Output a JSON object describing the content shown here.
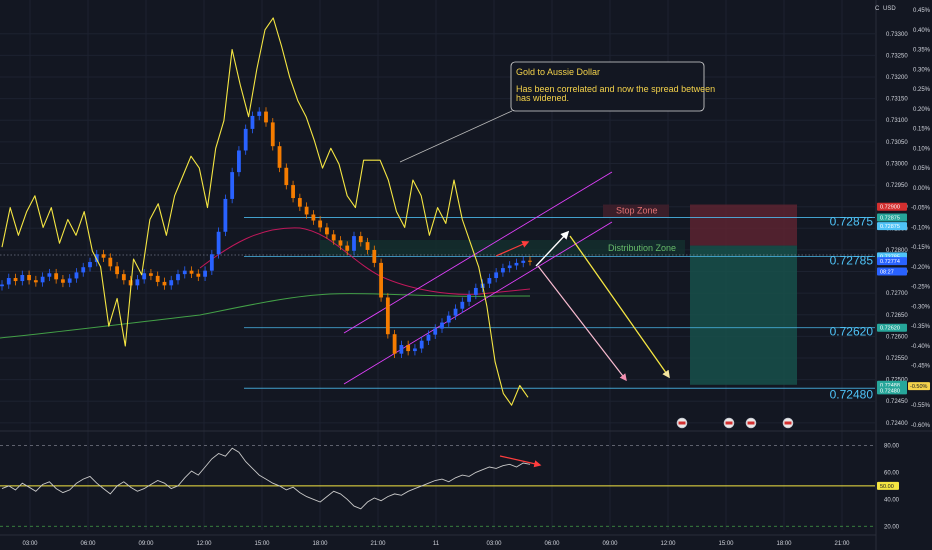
{
  "header": {
    "currency": "USD",
    "corner": "C"
  },
  "colors": {
    "bg": "#131722",
    "up": "#2962ff",
    "down": "#f57c00",
    "overlay": "#f5e642",
    "level": "#4fc3f7",
    "channel": "#e040fb",
    "ma_fast": "#c2185b",
    "ma_slow": "#43a047",
    "rsi": "#c8c8c8",
    "stop": "#e57373",
    "dist": "#66bb6a"
  },
  "chart_data": [
    {
      "type": "candlestick",
      "title": "",
      "y_ticks": [
        "0.73300",
        "0.73250",
        "0.73200",
        "0.73150",
        "0.73100",
        "0.73050",
        "0.73000",
        "0.72950",
        "0.72900",
        "0.72850",
        "0.72800",
        "0.72750",
        "0.72700",
        "0.72650",
        "0.72600",
        "0.72550",
        "0.72500",
        "0.72450",
        "0.72400"
      ],
      "pct_ticks": [
        "0.45%",
        "0.40%",
        "0.35%",
        "0.30%",
        "0.25%",
        "0.20%",
        "0.15%",
        "0.10%",
        "0.05%",
        "0.00%",
        "-0.05%",
        "-0.10%",
        "-0.15%",
        "-0.20%",
        "-0.25%",
        "-0.30%",
        "-0.35%",
        "-0.40%",
        "-0.45%",
        "-0.50%",
        "-0.55%",
        "-0.60%"
      ],
      "x_ticks": [
        "03:00",
        "06:00",
        "09:00",
        "12:00",
        "15:00",
        "18:00",
        "21:00",
        "11",
        "03:00",
        "06:00",
        "09:00",
        "12:00",
        "15:00",
        "18:00",
        "21:00"
      ],
      "ylim": [
        0.72395,
        0.73355
      ],
      "price_close": [
        0.7272,
        0.72735,
        0.72728,
        0.72742,
        0.7273,
        0.72725,
        0.72738,
        0.72746,
        0.72732,
        0.72724,
        0.72734,
        0.72748,
        0.7276,
        0.72772,
        0.7279,
        0.72782,
        0.72762,
        0.72744,
        0.7273,
        0.72718,
        0.72732,
        0.72746,
        0.7274,
        0.72726,
        0.72718,
        0.7273,
        0.72744,
        0.72752,
        0.72745,
        0.72738,
        0.72752,
        0.7279,
        0.72842,
        0.72918,
        0.7298,
        0.7303,
        0.7308,
        0.7311,
        0.7312,
        0.73095,
        0.7304,
        0.7299,
        0.7295,
        0.7292,
        0.729,
        0.72882,
        0.72868,
        0.72852,
        0.72836,
        0.72822,
        0.7281,
        0.72798,
        0.72832,
        0.72818,
        0.728,
        0.7277,
        0.7269,
        0.72605,
        0.7256,
        0.7258,
        0.72566,
        0.72572,
        0.7259,
        0.72604,
        0.72618,
        0.72632,
        0.72648,
        0.72664,
        0.7268,
        0.72696,
        0.72712,
        0.72722,
        0.72735,
        0.72748,
        0.72758,
        0.72764,
        0.7277,
        0.72775,
        0.72774
      ],
      "levels": [
        {
          "value": 0.72875,
          "label": "0.72875"
        },
        {
          "value": 0.72785,
          "label": "0.72785"
        },
        {
          "value": 0.7262,
          "label": "0.72620"
        },
        {
          "value": 0.7248,
          "label": "0.72480"
        }
      ],
      "price_tags": [
        "0.72900",
        "0.72875",
        "0.72875",
        "0.72785",
        "0.72774",
        "08:27",
        "0.72620",
        "0.72488",
        "0.72480"
      ],
      "pct_tag": "-0.50%",
      "zones": [
        {
          "name": "Stop Zone",
          "from": 0.72905,
          "to": 0.72875
        },
        {
          "name": "Distribution Zone",
          "from": 0.72823,
          "to": 0.72787
        }
      ],
      "annotation": {
        "title": "Gold to Aussie Dollar",
        "body": [
          "Has been correlated and now the spread between",
          "has widened."
        ]
      },
      "overlay_series": {
        "name": "",
        "unit": "%",
        "values": [
          -0.15,
          -0.05,
          -0.12,
          -0.06,
          -0.02,
          -0.1,
          -0.05,
          -0.14,
          -0.08,
          -0.12,
          -0.06,
          -0.16,
          -0.2,
          -0.35,
          -0.28,
          -0.4,
          -0.18,
          -0.22,
          -0.08,
          -0.04,
          -0.12,
          -0.02,
          0.03,
          0.08,
          0.05,
          -0.05,
          0.1,
          0.17,
          0.35,
          0.26,
          0.18,
          0.3,
          0.4,
          0.43,
          0.36,
          0.28,
          0.22,
          0.18,
          0.12,
          0.05,
          0.1,
          0.06,
          -0.02,
          -0.05,
          0.07,
          0.07,
          0.07,
          0.02,
          -0.06,
          -0.1,
          0.02,
          -0.02,
          -0.12,
          -0.05,
          -0.09,
          0.02,
          -0.08,
          -0.14,
          -0.2,
          -0.3,
          -0.44,
          -0.52,
          -0.55,
          -0.5,
          -0.53
        ]
      }
    },
    {
      "type": "line",
      "title": "",
      "series": [
        {
          "name": "",
          "values": [
            48,
            50,
            47,
            52,
            49,
            46,
            51,
            53,
            48,
            45,
            47,
            52,
            55,
            57,
            52,
            48,
            44,
            50,
            53,
            49,
            46,
            48,
            51,
            54,
            52,
            48,
            50,
            56,
            61,
            58,
            64,
            70,
            74,
            72,
            78,
            75,
            68,
            63,
            58,
            55,
            52,
            50,
            47,
            49,
            45,
            42,
            40,
            38,
            42,
            46,
            44,
            40,
            35,
            33,
            38,
            41,
            39,
            42,
            44,
            43,
            46,
            48,
            50,
            52,
            54,
            55,
            53,
            56,
            58,
            57,
            60,
            62,
            64,
            63,
            65,
            66,
            64,
            67,
            66
          ]
        }
      ],
      "y_ticks": [
        "80.00",
        "60.00",
        "40.00",
        "20.00"
      ],
      "ylim": [
        15,
        90
      ],
      "reference": 50,
      "reference_tag": "50.00"
    }
  ]
}
